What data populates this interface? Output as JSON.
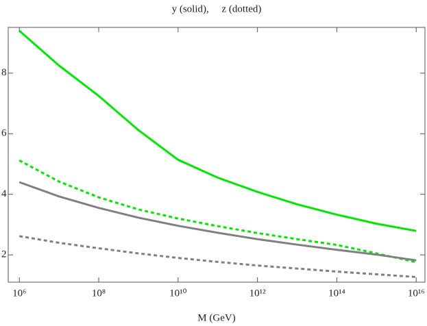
{
  "chart_data": {
    "type": "line",
    "title": "y (solid),     z (dotted)",
    "x_label": "M (GeV)",
    "xlog": true,
    "x": [
      1000000,
      10000000,
      100000000,
      1000000000,
      10000000000,
      100000000000,
      1000000000000,
      10000000000000,
      100000000000000,
      1000000000000000,
      10000000000000000
    ],
    "series": [
      {
        "color": "#00e600",
        "dash": false,
        "values": [
          9.4,
          8.25,
          7.25,
          6.12,
          5.14,
          4.55,
          4.08,
          3.67,
          3.33,
          3.03,
          2.79
        ]
      },
      {
        "color": "#00e600",
        "dash": true,
        "values": [
          5.12,
          4.42,
          3.9,
          3.5,
          3.2,
          2.95,
          2.72,
          2.52,
          2.33,
          2.05,
          1.76
        ]
      },
      {
        "color": "#808080",
        "dash": false,
        "values": [
          4.4,
          3.93,
          3.55,
          3.23,
          2.96,
          2.73,
          2.52,
          2.34,
          2.17,
          2.01,
          1.82
        ]
      },
      {
        "color": "#808080",
        "dash": true,
        "values": [
          2.62,
          2.4,
          2.22,
          2.05,
          1.9,
          1.77,
          1.65,
          1.55,
          1.45,
          1.36,
          1.27
        ]
      }
    ],
    "xlim": [
      525000,
      16600000000000000
    ],
    "ylim": [
      1.1,
      9.51
    ],
    "xticks": [
      {
        "value": 1000000,
        "label": "10⁶"
      },
      {
        "value": 100000000,
        "label": "10⁸"
      },
      {
        "value": 10000000000,
        "label": "10¹⁰"
      },
      {
        "value": 1000000000000,
        "label": "10¹²"
      },
      {
        "value": 100000000000000,
        "label": "10¹⁴"
      },
      {
        "value": 10000000000000000,
        "label": "10¹⁶"
      }
    ],
    "yticks": [
      2,
      4,
      6,
      8
    ]
  }
}
